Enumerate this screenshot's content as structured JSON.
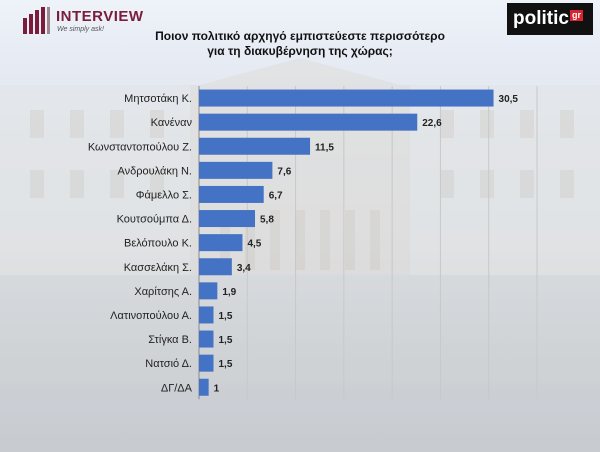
{
  "header": {
    "brand": "INTERVIEW",
    "tagline": "We simply ask!",
    "publisher": "politic",
    "publisher_suffix": "gr"
  },
  "colors": {
    "bar": "#4472c4",
    "brand": "#7a1c3a",
    "publisher_bg": "#111111",
    "publisher_accent": "#d9232e"
  },
  "chart_data": {
    "type": "bar",
    "orientation": "horizontal",
    "title": "Ποιον πολιτικό αρχηγό εμπιστεύεστε περισσότερο για τη διακυβέρνηση της χώρας;",
    "title_lines": [
      "Ποιον πολιτικό αρχηγό εμπιστεύεστε περισσότερο",
      "για τη διακυβέρνηση της χώρας;"
    ],
    "categories": [
      "Μητσοτάκη Κ.",
      "Κανέναν",
      "Κωνσταντοπούλου Ζ.",
      "Ανδρουλάκη Ν.",
      "Φάμελλο Σ.",
      "Κουτσούμπα Δ.",
      "Βελόπουλο Κ.",
      "Κασσελάκη Σ.",
      "Χαρίτσης Α.",
      "Λατινοπούλου Α.",
      "Στίγκα Β.",
      "Νατσιό Δ.",
      "ΔΓ/ΔΑ"
    ],
    "values": [
      30.5,
      22.6,
      11.5,
      7.6,
      6.7,
      5.8,
      4.5,
      3.4,
      1.9,
      1.5,
      1.5,
      1.5,
      1
    ],
    "value_labels": [
      "30,5",
      "22,6",
      "11,5",
      "7,6",
      "6,7",
      "5,8",
      "4,5",
      "3,4",
      "1,9",
      "1,5",
      "1,5",
      "1,5",
      "1"
    ],
    "xlim": [
      0,
      35
    ],
    "gridlines": true,
    "legend": "none"
  }
}
